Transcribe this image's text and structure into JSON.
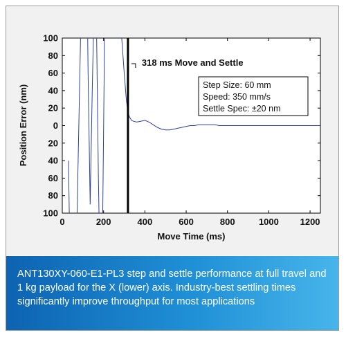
{
  "chart_data": {
    "type": "line",
    "xlabel": "Move Time (ms)",
    "ylabel": "Position Error (nm)",
    "xlim": [
      0,
      1250
    ],
    "ylim": [
      -100,
      100
    ],
    "x_ticks": [
      0,
      200,
      400,
      600,
      800,
      1000,
      1200
    ],
    "y_ticks": [
      100,
      80,
      60,
      40,
      20,
      0,
      20,
      40,
      60,
      80,
      100
    ],
    "grid": false,
    "series": [
      {
        "color": "#2c3fa0",
        "x": [
          30,
          40,
          55,
          70,
          90,
          105,
          118,
          125,
          135,
          145,
          155,
          165,
          175,
          185,
          195,
          205,
          215,
          225,
          240,
          255,
          270,
          285,
          300,
          310,
          318,
          325,
          335,
          345,
          360,
          380,
          400,
          420,
          440,
          460,
          480,
          500,
          520,
          540,
          560,
          580,
          600,
          620,
          640,
          660,
          680,
          700,
          720,
          740,
          760,
          780,
          800,
          850,
          900,
          950,
          1000,
          1050,
          1100,
          1150,
          1200,
          1250
        ],
        "y": [
          -40,
          -200,
          -260,
          -120,
          120,
          260,
          210,
          60,
          -90,
          40,
          150,
          130,
          -60,
          -200,
          -120,
          110,
          240,
          260,
          260,
          240,
          180,
          110,
          60,
          30,
          15,
          10,
          6,
          5,
          4,
          5,
          6,
          4,
          1,
          -2,
          -4,
          -5,
          -5,
          -4,
          -3,
          -2,
          -1,
          0,
          0,
          1,
          1,
          1,
          1,
          1,
          0,
          0,
          0,
          0,
          0,
          0,
          0,
          0,
          0,
          0,
          0,
          0
        ]
      }
    ],
    "marker_x": 318,
    "annotation": "318 ms Move and Settle",
    "info_box": [
      "Step Size: 60 mm",
      "Speed: 350 mm/s",
      "Settle Spec: ±20 nm"
    ]
  },
  "caption": "ANT130XY-060-E1-PL3 step and settle performance at full travel and 1 kg payload for the X (lower) axis. Industry-best settling times significantly improve throughput for most applications"
}
